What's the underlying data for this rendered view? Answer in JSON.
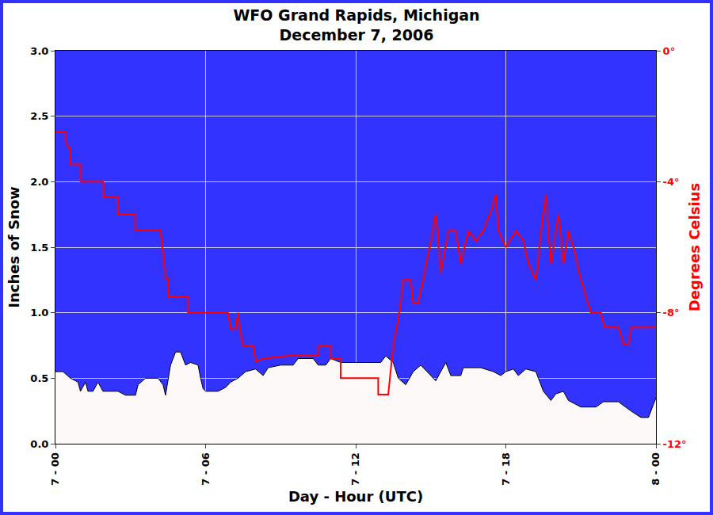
{
  "chart_data": {
    "type": "line",
    "title": "WFO Grand Rapids, Michigan\nDecember 7, 2006",
    "x_label": "Day - Hour (UTC)",
    "y_label": "Inches of Snow",
    "y2_label": "Degrees Celsius",
    "xlim": [
      0,
      24
    ],
    "xticks": [
      {
        "value": 0,
        "label": "7 - 00"
      },
      {
        "value": 6,
        "label": "7 - 06"
      },
      {
        "value": 12,
        "label": "7 - 12"
      },
      {
        "value": 18,
        "label": "7 - 18"
      },
      {
        "value": 24,
        "label": "8 - 00"
      }
    ],
    "ylim": [
      0,
      3
    ],
    "yticks": [
      {
        "value": 0,
        "label": "0.0"
      },
      0.5,
      {
        "value": 1,
        "label": "1.0"
      },
      1.5,
      {
        "value": 2,
        "label": "2.0"
      },
      2.5,
      {
        "value": 3,
        "label": "3.0"
      }
    ],
    "y2lim": [
      -12,
      0
    ],
    "y2ticks": [
      {
        "value": -12,
        "label": "-12°"
      },
      {
        "value": -8,
        "label": "-8°"
      },
      {
        "value": -4,
        "label": "-4°"
      },
      {
        "value": 0,
        "label": "0°"
      }
    ],
    "grid": true,
    "series": [
      {
        "type": "area",
        "color": "#fcf8f8",
        "x": [
          0,
          0.3,
          0.6,
          0.9,
          1.0,
          1.2,
          1.3,
          1.5,
          1.7,
          1.9,
          2.5,
          2.8,
          3.2,
          3.3,
          3.6,
          4.1,
          4.3,
          4.4,
          4.6,
          4.8,
          5.0,
          5.2,
          5.4,
          5.7,
          5.8,
          5.9,
          6.0,
          6.5,
          6.8,
          7.0,
          7.3,
          7.6,
          8.0,
          8.3,
          8.5,
          9.0,
          9.5,
          9.7,
          10.3,
          10.5,
          10.8,
          11.0,
          11.4,
          12.0,
          13.0,
          13.2,
          13.5,
          13.7,
          14.0,
          14.3,
          14.6,
          15.0,
          15.2,
          15.4,
          15.6,
          15.8,
          16.2,
          16.3,
          17.0,
          17.5,
          17.8,
          18.0,
          18.3,
          18.5,
          18.8,
          19.2,
          19.5,
          19.8,
          20.0,
          20.3,
          20.5,
          20.8,
          21.0,
          21.6,
          21.9,
          22.5,
          23.0,
          23.4,
          23.7,
          23.9,
          24.0
        ],
        "values": [
          0.55,
          0.55,
          0.5,
          0.47,
          0.4,
          0.47,
          0.4,
          0.4,
          0.47,
          0.4,
          0.4,
          0.37,
          0.37,
          0.45,
          0.5,
          0.5,
          0.45,
          0.37,
          0.6,
          0.7,
          0.7,
          0.6,
          0.62,
          0.6,
          0.5,
          0.42,
          0.4,
          0.4,
          0.43,
          0.47,
          0.5,
          0.55,
          0.57,
          0.52,
          0.58,
          0.6,
          0.6,
          0.65,
          0.65,
          0.6,
          0.6,
          0.65,
          0.62,
          0.62,
          0.62,
          0.67,
          0.62,
          0.5,
          0.45,
          0.55,
          0.6,
          0.52,
          0.48,
          0.55,
          0.62,
          0.52,
          0.52,
          0.58,
          0.58,
          0.55,
          0.52,
          0.55,
          0.57,
          0.52,
          0.57,
          0.55,
          0.4,
          0.33,
          0.38,
          0.4,
          0.33,
          0.3,
          0.28,
          0.28,
          0.32,
          0.32,
          0.25,
          0.2,
          0.2,
          0.3,
          0.35
        ]
      },
      {
        "type": "line",
        "color": "#ff0000",
        "axis": "y2",
        "x": [
          0,
          0.4,
          0.4,
          0.5,
          0.6,
          0.6,
          1.0,
          1.0,
          1.9,
          1.9,
          2.5,
          2.5,
          3.2,
          3.2,
          4.2,
          4.3,
          4.4,
          4.5,
          4.5,
          5.3,
          5.3,
          6.9,
          7.0,
          7.2,
          7.3,
          7.35,
          7.5,
          7.9,
          8.0,
          8.3,
          9.5,
          10.5,
          10.5,
          11.0,
          11.0,
          11.4,
          11.4,
          12.9,
          12.9,
          13.3,
          13.5,
          13.7,
          13.9,
          14.2,
          14.3,
          14.5,
          14.7,
          14.8,
          15.0,
          15.2,
          15.4,
          15.7,
          16.0,
          16.2,
          16.5,
          16.8,
          17.1,
          17.4,
          17.6,
          17.7,
          18.0,
          18.4,
          18.7,
          18.9,
          19.2,
          19.5,
          19.6,
          19.8,
          20.1,
          20.3,
          20.5,
          20.7,
          21.0,
          21.4,
          21.8,
          21.95,
          22.5,
          22.7,
          22.9,
          23.0,
          24.0
        ],
        "values": [
          -2.47,
          -2.47,
          -2.7,
          -2.95,
          -2.95,
          -3.47,
          -3.47,
          -4.0,
          -4.0,
          -4.46,
          -4.46,
          -4.99,
          -4.99,
          -5.47,
          -5.47,
          -6.2,
          -6.96,
          -6.96,
          -7.5,
          -7.5,
          -8.0,
          -8.0,
          -8.5,
          -8.5,
          -8.0,
          -8.5,
          -9.0,
          -9.0,
          -9.5,
          -9.4,
          -9.3,
          -9.3,
          -9.0,
          -9.0,
          -9.4,
          -9.4,
          -10.0,
          -10.0,
          -10.5,
          -10.5,
          -9.0,
          -8.2,
          -7.0,
          -7.0,
          -7.7,
          -7.7,
          -7.0,
          -6.6,
          -5.8,
          -5.0,
          -6.8,
          -5.5,
          -5.5,
          -6.5,
          -5.5,
          -5.8,
          -5.5,
          -4.9,
          -4.4,
          -5.5,
          -6.0,
          -5.5,
          -5.8,
          -6.5,
          -7.0,
          -4.9,
          -4.4,
          -6.5,
          -5.0,
          -6.5,
          -5.5,
          -6.0,
          -7.0,
          -8.0,
          -8.0,
          -8.45,
          -8.45,
          -8.95,
          -8.95,
          -8.45,
          -8.45
        ]
      }
    ]
  }
}
